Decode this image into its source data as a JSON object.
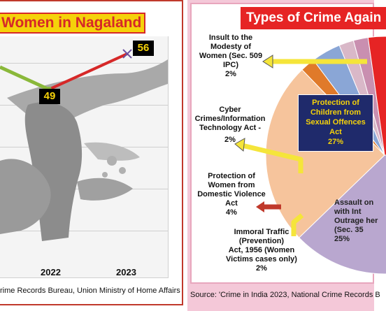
{
  "chart_data": [
    {
      "type": "line",
      "title": "Women in Nagaland",
      "categories": [
        "2022",
        "2023"
      ],
      "series": [
        {
          "values": [
            49,
            56
          ],
          "color": "#d62828"
        }
      ],
      "prior_series_color": "#8ab83a",
      "value_labels": [
        "49",
        "56"
      ],
      "grid": true,
      "source": "rime Records Bureau, Union Ministry of Home Affairs"
    },
    {
      "type": "pie",
      "title": "Types of Crime Again",
      "slices": [
        {
          "label_lines": [
            "Insult to the",
            "Modesty of",
            "Women (Sec. 509",
            "IPC)",
            "2%"
          ],
          "value": 2,
          "color": "#c98fb0"
        },
        {
          "label_lines": [
            "Cyber",
            "Crimes/Information",
            "Technology Act -",
            "2%"
          ],
          "value": 2,
          "color": "#d9b8c8"
        },
        {
          "label_lines": [
            "Protection of",
            "Women from",
            "Domestic Violence",
            "Act",
            "4%"
          ],
          "value": 4,
          "color": "#8aa6d6"
        },
        {
          "label_lines": [
            "Immoral Traffic",
            "(Prevention)",
            "Act, 1956 (Women",
            "Victims cases only)",
            "2%"
          ],
          "value": 2,
          "color": "#e07a2a"
        },
        {
          "label_lines": [
            "Assault on",
            "with Int",
            "Outrage her",
            "(Sec. 35",
            "25%"
          ],
          "value": 25,
          "color": "#f6c49c"
        },
        {
          "label_lines": [
            "Protection of",
            "Children from",
            "Sexual Offences",
            "Act",
            "27%"
          ],
          "value": 27,
          "color": "#e62424"
        }
      ],
      "legend": "none",
      "source": "Source: 'Crime in India 2023, National Crime Records B"
    }
  ]
}
